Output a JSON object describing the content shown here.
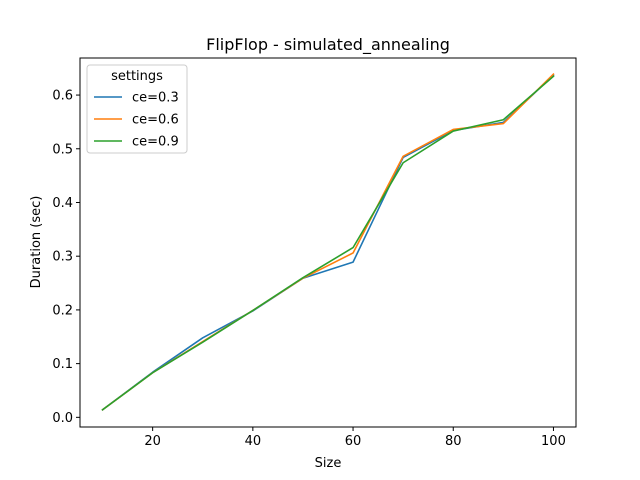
{
  "chart_data": {
    "type": "line",
    "title": "FlipFlop - simulated_annealing",
    "xlabel": "Size",
    "ylabel": "Duration (sec)",
    "xlim": [
      5.5,
      104.5
    ],
    "ylim": [
      -0.018,
      0.669
    ],
    "x_ticks": [
      20,
      40,
      60,
      80,
      100
    ],
    "y_ticks": [
      0.0,
      0.1,
      0.2,
      0.3,
      0.4,
      0.5,
      0.6
    ],
    "x": [
      10,
      20,
      30,
      40,
      50,
      60,
      70,
      80,
      90,
      100
    ],
    "grid": false,
    "legend": {
      "title": "settings",
      "position": "top-left"
    },
    "series": [
      {
        "name": "ce=0.3",
        "color": "#1f77b4",
        "values": [
          0.014,
          0.084,
          0.148,
          0.198,
          0.259,
          0.289,
          0.484,
          0.534,
          0.549,
          0.637
        ]
      },
      {
        "name": "ce=0.6",
        "color": "#ff7f0e",
        "values": [
          0.014,
          0.083,
          0.141,
          0.199,
          0.259,
          0.306,
          0.486,
          0.536,
          0.547,
          0.639
        ]
      },
      {
        "name": "ce=0.9",
        "color": "#2ca02c",
        "values": [
          0.014,
          0.083,
          0.14,
          0.199,
          0.26,
          0.316,
          0.474,
          0.533,
          0.554,
          0.635
        ]
      }
    ]
  }
}
